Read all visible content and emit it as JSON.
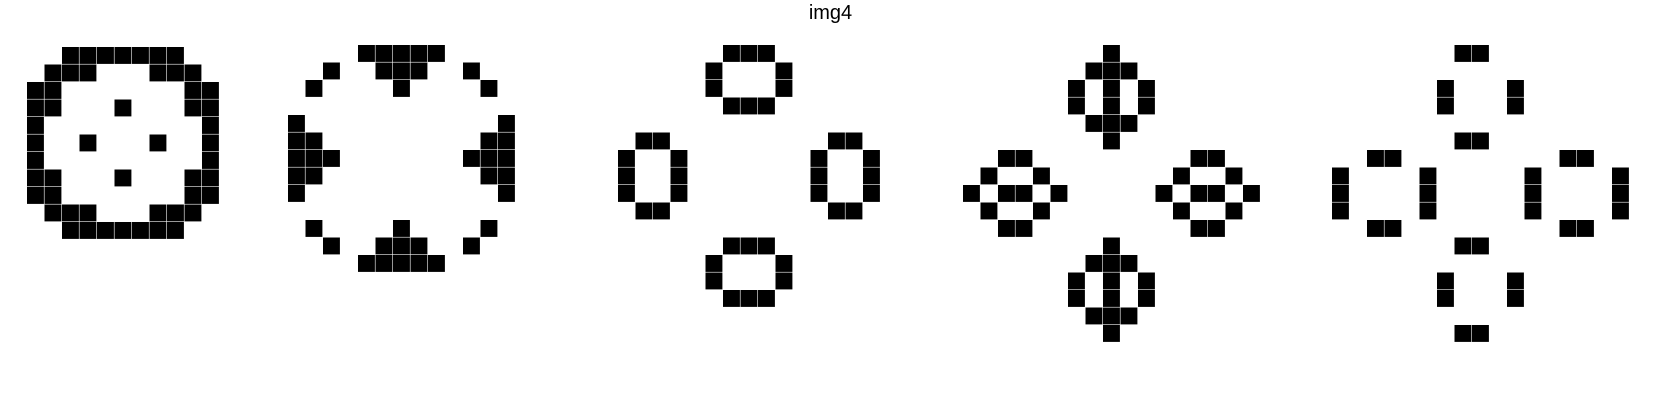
{
  "title": "img4",
  "colors": {
    "background": "#ffffff",
    "cell": "#000000"
  },
  "panels": [
    {
      "name": "panel-1",
      "cells": [
        [
          0,
          2
        ],
        [
          0,
          3
        ],
        [
          0,
          4
        ],
        [
          0,
          5
        ],
        [
          0,
          6
        ],
        [
          0,
          7
        ],
        [
          0,
          8
        ],
        [
          1,
          1
        ],
        [
          1,
          2
        ],
        [
          1,
          3
        ],
        [
          1,
          7
        ],
        [
          1,
          8
        ],
        [
          1,
          9
        ],
        [
          2,
          0
        ],
        [
          2,
          1
        ],
        [
          2,
          9
        ],
        [
          2,
          10
        ],
        [
          3,
          0
        ],
        [
          3,
          1
        ],
        [
          3,
          5
        ],
        [
          3,
          9
        ],
        [
          3,
          10
        ],
        [
          4,
          0
        ],
        [
          4,
          10
        ],
        [
          5,
          0
        ],
        [
          5,
          3
        ],
        [
          5,
          7
        ],
        [
          5,
          10
        ],
        [
          6,
          0
        ],
        [
          6,
          10
        ],
        [
          7,
          0
        ],
        [
          7,
          1
        ],
        [
          7,
          5
        ],
        [
          7,
          9
        ],
        [
          7,
          10
        ],
        [
          8,
          0
        ],
        [
          8,
          1
        ],
        [
          8,
          9
        ],
        [
          8,
          10
        ],
        [
          9,
          1
        ],
        [
          9,
          2
        ],
        [
          9,
          3
        ],
        [
          9,
          7
        ],
        [
          9,
          8
        ],
        [
          9,
          9
        ],
        [
          10,
          2
        ],
        [
          10,
          3
        ],
        [
          10,
          4
        ],
        [
          10,
          5
        ],
        [
          10,
          6
        ],
        [
          10,
          7
        ],
        [
          10,
          8
        ]
      ]
    },
    {
      "name": "panel-2",
      "cells": [
        [
          0,
          4
        ],
        [
          0,
          5
        ],
        [
          0,
          6
        ],
        [
          0,
          7
        ],
        [
          0,
          8
        ],
        [
          1,
          2
        ],
        [
          1,
          5
        ],
        [
          1,
          6
        ],
        [
          1,
          7
        ],
        [
          1,
          10
        ],
        [
          2,
          1
        ],
        [
          2,
          6
        ],
        [
          2,
          11
        ],
        [
          4,
          0
        ],
        [
          4,
          12
        ],
        [
          5,
          0
        ],
        [
          5,
          1
        ],
        [
          5,
          11
        ],
        [
          5,
          12
        ],
        [
          6,
          0
        ],
        [
          6,
          1
        ],
        [
          6,
          2
        ],
        [
          6,
          10
        ],
        [
          6,
          11
        ],
        [
          6,
          12
        ],
        [
          7,
          0
        ],
        [
          7,
          1
        ],
        [
          7,
          11
        ],
        [
          7,
          12
        ],
        [
          8,
          0
        ],
        [
          8,
          12
        ],
        [
          10,
          1
        ],
        [
          10,
          6
        ],
        [
          10,
          11
        ],
        [
          11,
          2
        ],
        [
          11,
          5
        ],
        [
          11,
          6
        ],
        [
          11,
          7
        ],
        [
          11,
          10
        ],
        [
          12,
          4
        ],
        [
          12,
          5
        ],
        [
          12,
          6
        ],
        [
          12,
          7
        ],
        [
          12,
          8
        ]
      ]
    },
    {
      "name": "panel-3",
      "cells": [
        [
          0,
          6
        ],
        [
          0,
          7
        ],
        [
          0,
          8
        ],
        [
          1,
          5
        ],
        [
          1,
          9
        ],
        [
          2,
          5
        ],
        [
          2,
          9
        ],
        [
          3,
          6
        ],
        [
          3,
          7
        ],
        [
          3,
          8
        ],
        [
          5,
          1
        ],
        [
          5,
          2
        ],
        [
          5,
          12
        ],
        [
          5,
          13
        ],
        [
          6,
          0
        ],
        [
          6,
          3
        ],
        [
          6,
          11
        ],
        [
          6,
          14
        ],
        [
          7,
          0
        ],
        [
          7,
          3
        ],
        [
          7,
          11
        ],
        [
          7,
          14
        ],
        [
          8,
          0
        ],
        [
          8,
          3
        ],
        [
          8,
          11
        ],
        [
          8,
          14
        ],
        [
          9,
          1
        ],
        [
          9,
          2
        ],
        [
          9,
          12
        ],
        [
          9,
          13
        ],
        [
          11,
          6
        ],
        [
          11,
          7
        ],
        [
          11,
          8
        ],
        [
          12,
          5
        ],
        [
          12,
          9
        ],
        [
          13,
          5
        ],
        [
          13,
          9
        ],
        [
          14,
          6
        ],
        [
          14,
          7
        ],
        [
          14,
          8
        ]
      ]
    },
    {
      "name": "panel-4",
      "cells": [
        [
          0,
          8
        ],
        [
          1,
          7
        ],
        [
          1,
          8
        ],
        [
          1,
          9
        ],
        [
          2,
          6
        ],
        [
          2,
          8
        ],
        [
          2,
          10
        ],
        [
          3,
          6
        ],
        [
          3,
          8
        ],
        [
          3,
          10
        ],
        [
          4,
          7
        ],
        [
          4,
          8
        ],
        [
          4,
          9
        ],
        [
          5,
          8
        ],
        [
          6,
          2
        ],
        [
          6,
          3
        ],
        [
          6,
          13
        ],
        [
          6,
          14
        ],
        [
          7,
          1
        ],
        [
          7,
          4
        ],
        [
          7,
          12
        ],
        [
          7,
          15
        ],
        [
          8,
          0
        ],
        [
          8,
          2
        ],
        [
          8,
          3
        ],
        [
          8,
          5
        ],
        [
          8,
          11
        ],
        [
          8,
          13
        ],
        [
          8,
          14
        ],
        [
          8,
          16
        ],
        [
          9,
          1
        ],
        [
          9,
          4
        ],
        [
          9,
          12
        ],
        [
          9,
          15
        ],
        [
          10,
          2
        ],
        [
          10,
          3
        ],
        [
          10,
          13
        ],
        [
          10,
          14
        ],
        [
          11,
          8
        ],
        [
          12,
          7
        ],
        [
          12,
          8
        ],
        [
          12,
          9
        ],
        [
          13,
          6
        ],
        [
          13,
          8
        ],
        [
          13,
          10
        ],
        [
          14,
          6
        ],
        [
          14,
          8
        ],
        [
          14,
          10
        ],
        [
          15,
          7
        ],
        [
          15,
          8
        ],
        [
          15,
          9
        ],
        [
          16,
          8
        ]
      ]
    },
    {
      "name": "panel-5",
      "cells": [
        [
          0,
          7
        ],
        [
          0,
          8
        ],
        [
          2,
          6
        ],
        [
          2,
          10
        ],
        [
          3,
          6
        ],
        [
          3,
          10
        ],
        [
          5,
          7
        ],
        [
          5,
          8
        ],
        [
          6,
          2
        ],
        [
          6,
          3
        ],
        [
          6,
          13
        ],
        [
          6,
          14
        ],
        [
          7,
          0
        ],
        [
          7,
          5
        ],
        [
          7,
          11
        ],
        [
          7,
          16
        ],
        [
          8,
          0
        ],
        [
          8,
          5
        ],
        [
          8,
          11
        ],
        [
          8,
          16
        ],
        [
          9,
          0
        ],
        [
          9,
          5
        ],
        [
          9,
          11
        ],
        [
          9,
          16
        ],
        [
          10,
          2
        ],
        [
          10,
          3
        ],
        [
          10,
          13
        ],
        [
          10,
          14
        ],
        [
          11,
          7
        ],
        [
          11,
          8
        ],
        [
          13,
          6
        ],
        [
          13,
          10
        ],
        [
          14,
          6
        ],
        [
          14,
          10
        ],
        [
          16,
          7
        ],
        [
          16,
          8
        ]
      ]
    }
  ]
}
